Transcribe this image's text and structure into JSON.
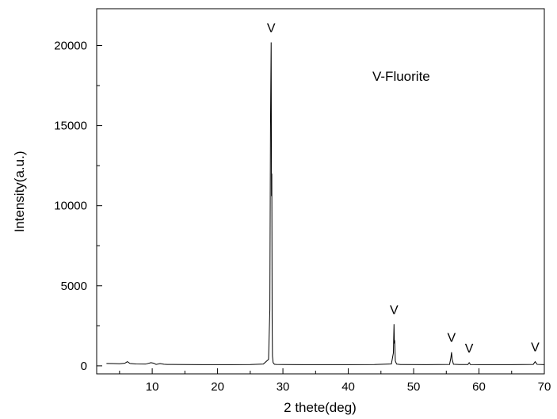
{
  "chart_data": {
    "type": "line",
    "title": "",
    "xlabel": "2 thete(deg)",
    "ylabel": "Intensity(a.u.)",
    "xlim": [
      1.5,
      70
    ],
    "ylim": [
      -500,
      22300
    ],
    "xticks": [
      10,
      20,
      30,
      40,
      50,
      60,
      70
    ],
    "yticks": [
      0,
      5000,
      10000,
      15000,
      20000
    ],
    "grid": false,
    "legend": {
      "label": "V-Fluorite",
      "placement": "top-right"
    },
    "line_color": "#000000",
    "series": [
      {
        "x": [
          3,
          4,
          5,
          5.8,
          6.2,
          6.6,
          7.5,
          9,
          9.8,
          10.2,
          10.6,
          11.2,
          11.8,
          12.3,
          13,
          15,
          18,
          22,
          25,
          27,
          27.8,
          28.0,
          28.1,
          28.2,
          28.25,
          28.3,
          28.35,
          28.4,
          28.5,
          28.7,
          29,
          30,
          35,
          40,
          44,
          46.6,
          46.9,
          47.0,
          47.05,
          47.1,
          47.2,
          47.4,
          48,
          52,
          55.5,
          55.7,
          55.8,
          55.9,
          56.1,
          57,
          58.3,
          58.5,
          58.7,
          60,
          65,
          68.3,
          68.6,
          68.9,
          70
        ],
        "y": [
          150,
          140,
          130,
          160,
          260,
          150,
          120,
          110,
          200,
          170,
          90,
          140,
          100,
          90,
          85,
          80,
          75,
          75,
          80,
          110,
          400,
          3500,
          15000,
          20200,
          10600,
          12000,
          3000,
          600,
          200,
          100,
          85,
          80,
          75,
          75,
          80,
          120,
          800,
          2600,
          1400,
          1600,
          300,
          110,
          80,
          75,
          90,
          500,
          850,
          400,
          100,
          80,
          80,
          200,
          80,
          75,
          75,
          90,
          260,
          90,
          75
        ]
      }
    ],
    "annotations": [
      {
        "text": "V",
        "x": 28.2,
        "y": 20200
      },
      {
        "text": "V",
        "x": 47.0,
        "y": 2600
      },
      {
        "text": "V",
        "x": 55.8,
        "y": 850
      },
      {
        "text": "V",
        "x": 58.5,
        "y": 200
      },
      {
        "text": "V",
        "x": 68.6,
        "y": 260
      }
    ]
  }
}
